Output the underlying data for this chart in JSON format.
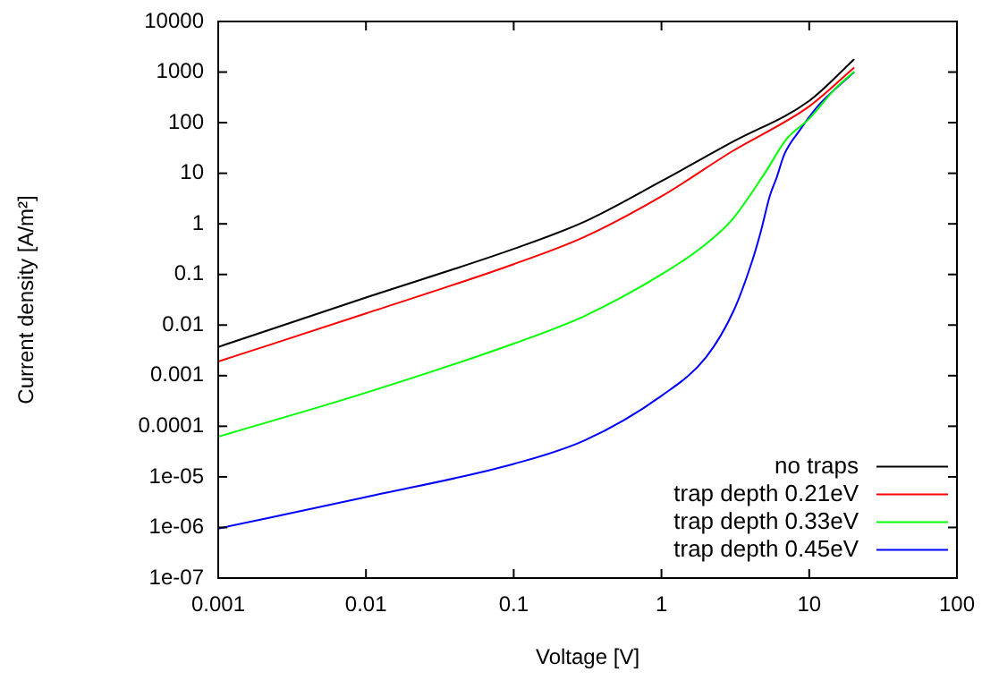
{
  "chart_data": {
    "type": "line",
    "xlabel": "Voltage [V]",
    "ylabel": "Current density [A/m²]",
    "log": "xy",
    "xlim": [
      0.001,
      100
    ],
    "xticks": [
      0.001,
      0.01,
      0.1,
      1,
      10,
      100
    ],
    "ylim": [
      1e-07,
      10000
    ],
    "yticks": [
      {
        "value": 1e-07,
        "label": "1e-07"
      },
      {
        "value": 1e-06,
        "label": "1e-06"
      },
      {
        "value": 1e-05,
        "label": "1e-05"
      },
      0.0001,
      0.001,
      0.01,
      0.1,
      1,
      10,
      100,
      1000,
      10000
    ],
    "grid": false,
    "legend": "bottom right",
    "marker": "none",
    "line_style": "solid",
    "series": [
      {
        "name": "no traps",
        "color": "#000000",
        "x": [
          0.001,
          0.01,
          0.1,
          0.3,
          1,
          3,
          10,
          20
        ],
        "values": [
          0.0037,
          0.035,
          0.32,
          1.1,
          7,
          41,
          270,
          1750
        ]
      },
      {
        "name": "trap depth 0.21eV",
        "color": "#ff0000",
        "x": [
          0.001,
          0.01,
          0.1,
          0.3,
          1,
          3,
          10,
          20
        ],
        "values": [
          0.0019,
          0.017,
          0.16,
          0.55,
          3.5,
          27,
          210,
          1200
        ]
      },
      {
        "name": "trap depth 0.33eV",
        "color": "#00ff00",
        "x": [
          0.001,
          0.01,
          0.1,
          0.3,
          1,
          2,
          3,
          5,
          7,
          10,
          15,
          20
        ],
        "values": [
          6.2e-05,
          0.00046,
          0.0043,
          0.015,
          0.1,
          0.4,
          1.2,
          10,
          47,
          120,
          470,
          1000
        ]
      },
      {
        "name": "trap depth 0.45eV",
        "color": "#0000ff",
        "x": [
          0.001,
          0.01,
          0.1,
          0.3,
          1,
          2,
          3.1,
          4.1,
          4.7,
          5.4,
          6,
          6.8,
          8.6,
          11.4,
          15.1,
          20
        ],
        "values": [
          9.5e-07,
          4e-06,
          1.8e-05,
          5.2e-05,
          0.0004,
          0.0023,
          0.02,
          0.18,
          0.7,
          3.5,
          8,
          24,
          70,
          210,
          470,
          980
        ]
      }
    ]
  }
}
